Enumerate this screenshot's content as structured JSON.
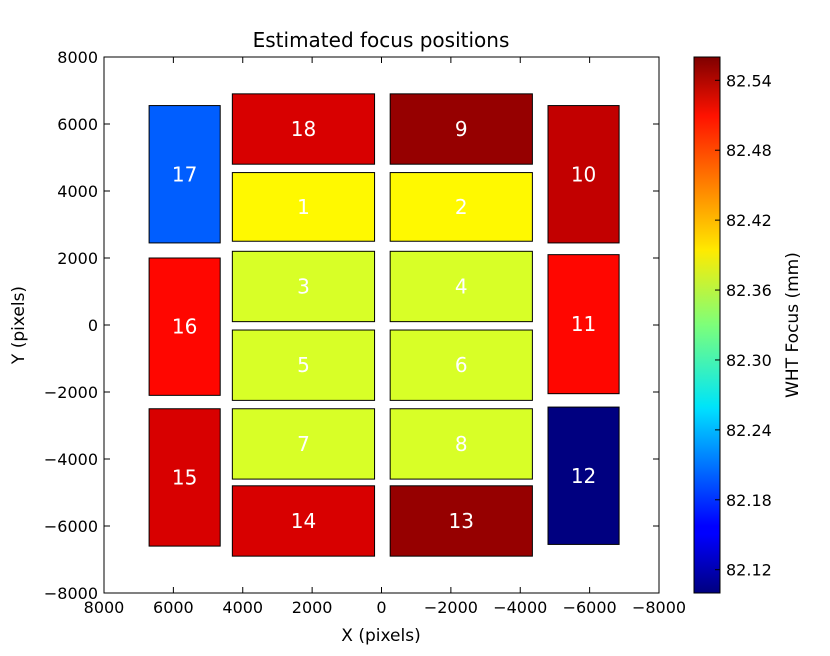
{
  "chart_data": {
    "type": "heatmap",
    "title": "Estimated focus positions",
    "xlabel": "X (pixels)",
    "ylabel": "Y (pixels)",
    "xlim": [
      8000,
      -8000
    ],
    "ylim": [
      -8000,
      8000
    ],
    "x_ticks": [
      {
        "value": 8000,
        "label": "8000"
      },
      {
        "value": 6000,
        "label": "6000"
      },
      {
        "value": 4000,
        "label": "4000"
      },
      {
        "value": 2000,
        "label": "2000"
      },
      {
        "value": 0,
        "label": "0"
      },
      {
        "value": -2000,
        "label": "−2000"
      },
      {
        "value": -4000,
        "label": "−4000"
      },
      {
        "value": -6000,
        "label": "−6000"
      },
      {
        "value": -8000,
        "label": "−8000"
      }
    ],
    "y_ticks": [
      {
        "value": 8000,
        "label": "8000"
      },
      {
        "value": 6000,
        "label": "6000"
      },
      {
        "value": 4000,
        "label": "4000"
      },
      {
        "value": 2000,
        "label": "2000"
      },
      {
        "value": 0,
        "label": "0"
      },
      {
        "value": -2000,
        "label": "−2000"
      },
      {
        "value": -4000,
        "label": "−4000"
      },
      {
        "value": -6000,
        "label": "−6000"
      },
      {
        "value": -8000,
        "label": "−8000"
      }
    ],
    "grid": false,
    "colorbar": {
      "label": "WHT Focus (mm)",
      "min": 82.1,
      "max": 82.56,
      "colormap": "jet",
      "ticks": [
        {
          "value": 82.12,
          "label": "82.12"
        },
        {
          "value": 82.18,
          "label": "82.18"
        },
        {
          "value": 82.24,
          "label": "82.24"
        },
        {
          "value": 82.3,
          "label": "82.30"
        },
        {
          "value": 82.36,
          "label": "82.36"
        },
        {
          "value": 82.42,
          "label": "82.42"
        },
        {
          "value": 82.48,
          "label": "82.48"
        },
        {
          "value": 82.54,
          "label": "82.54"
        }
      ]
    },
    "ccds": [
      {
        "label": "1",
        "x0": 4300,
        "x1": 200,
        "y0": 2500,
        "y1": 4550,
        "focus": 82.39
      },
      {
        "label": "2",
        "x0": -250,
        "x1": -4350,
        "y0": 2500,
        "y1": 4550,
        "focus": 82.39
      },
      {
        "label": "3",
        "x0": 4300,
        "x1": 200,
        "y0": 100,
        "y1": 2200,
        "focus": 82.37
      },
      {
        "label": "4",
        "x0": -250,
        "x1": -4350,
        "y0": 100,
        "y1": 2200,
        "focus": 82.37
      },
      {
        "label": "5",
        "x0": 4300,
        "x1": 200,
        "y0": -2250,
        "y1": -150,
        "focus": 82.37
      },
      {
        "label": "6",
        "x0": -250,
        "x1": -4350,
        "y0": -2250,
        "y1": -150,
        "focus": 82.37
      },
      {
        "label": "7",
        "x0": 4300,
        "x1": 200,
        "y0": -4600,
        "y1": -2500,
        "focus": 82.37
      },
      {
        "label": "8",
        "x0": -250,
        "x1": -4350,
        "y0": -4600,
        "y1": -2500,
        "focus": 82.37
      },
      {
        "label": "9",
        "x0": -250,
        "x1": -4350,
        "y0": 4800,
        "y1": 6900,
        "focus": 82.55
      },
      {
        "label": "10",
        "x0": -4800,
        "x1": -6850,
        "y0": 2450,
        "y1": 6550,
        "focus": 82.53
      },
      {
        "label": "11",
        "x0": -4800,
        "x1": -6850,
        "y0": -2050,
        "y1": 2100,
        "focus": 82.5
      },
      {
        "label": "12",
        "x0": -4800,
        "x1": -6850,
        "y0": -6550,
        "y1": -2450,
        "focus": 82.1
      },
      {
        "label": "13",
        "x0": -250,
        "x1": -4350,
        "y0": -6900,
        "y1": -4800,
        "focus": 82.55
      },
      {
        "label": "14",
        "x0": 4300,
        "x1": 200,
        "y0": -6900,
        "y1": -4800,
        "focus": 82.52
      },
      {
        "label": "15",
        "x0": 6700,
        "x1": 4650,
        "y0": -6600,
        "y1": -2500,
        "focus": 82.52
      },
      {
        "label": "16",
        "x0": 6700,
        "x1": 4650,
        "y0": -2100,
        "y1": 2000,
        "focus": 82.5
      },
      {
        "label": "17",
        "x0": 6700,
        "x1": 4650,
        "y0": 2450,
        "y1": 6550,
        "focus": 82.2
      },
      {
        "label": "18",
        "x0": 4300,
        "x1": 200,
        "y0": 4800,
        "y1": 6900,
        "focus": 82.52
      }
    ]
  }
}
